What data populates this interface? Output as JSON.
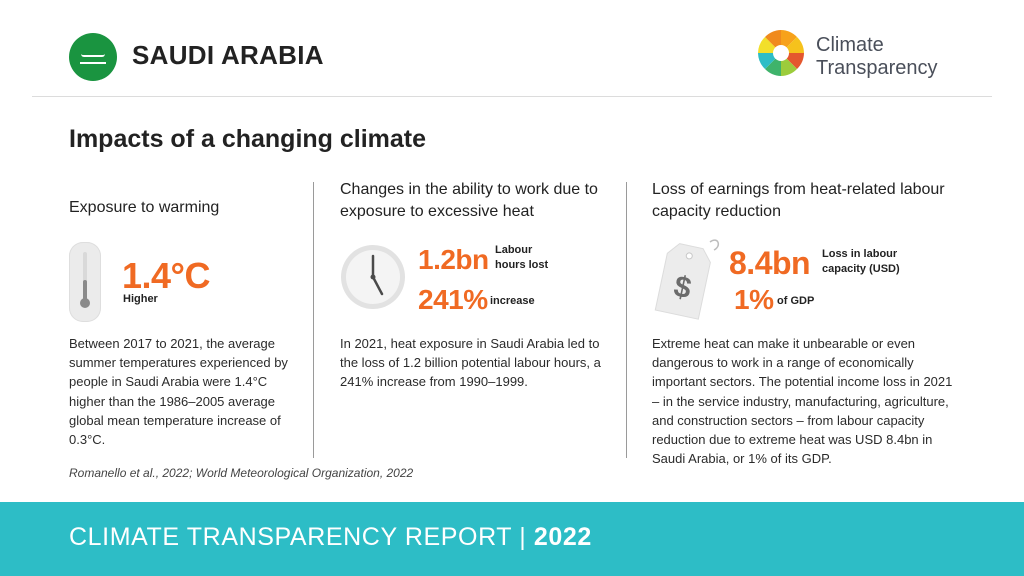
{
  "header": {
    "country": "SAUDI ARABIA",
    "logo_line1": "Climate",
    "logo_line2": "Transparency"
  },
  "section_title": "Impacts of a changing climate",
  "col1": {
    "heading": "Exposure to warming",
    "stat_value": "1.4°C",
    "stat_label": "Higher",
    "body": "Between 2017 to 2021, the average summer temperatures experienced by people in Saudi Arabia were 1.4°C higher than the 1986–2005 average global mean temperature increase of 0.3°C.",
    "icon": "thermometer-icon"
  },
  "col2": {
    "heading": "Changes in the ability to work due to exposure to excessive heat",
    "stat1_value": "1.2bn",
    "stat1_label": "Labour hours lost",
    "stat2_value": "241%",
    "stat2_label": "increase",
    "body": "In 2021, heat exposure in Saudi Arabia led to the loss of 1.2 billion potential labour hours, a 241% increase from 1990–1999.",
    "icon": "clock-icon"
  },
  "col3": {
    "heading": "Loss of earnings from heat-related labour capacity reduction",
    "stat1_value": "8.4bn",
    "stat1_label": "Loss in labour capacity (USD)",
    "stat2_value": "1%",
    "stat2_label": "of GDP",
    "body": "Extreme heat can make it unbearable or even dangerous to work in a range of economically important sectors. The potential income loss in 2021 – in the service industry, manufacturing, agriculture, and construction sectors – from labour capacity reduction due to extreme heat was USD 8.4bn in Saudi Arabia, or 1% of its GDP.",
    "icon": "price-tag-dollar-icon"
  },
  "source": "Romanello et al., 2022; World Meteorological Organization, 2022",
  "footer": {
    "report": "CLIMATE TRANSPARENCY REPORT",
    "separator": "|",
    "year": "2022"
  },
  "colors": {
    "accent_orange": "#f06a23",
    "footer_teal": "#2dbdc6",
    "flag_green": "#1a9440"
  }
}
